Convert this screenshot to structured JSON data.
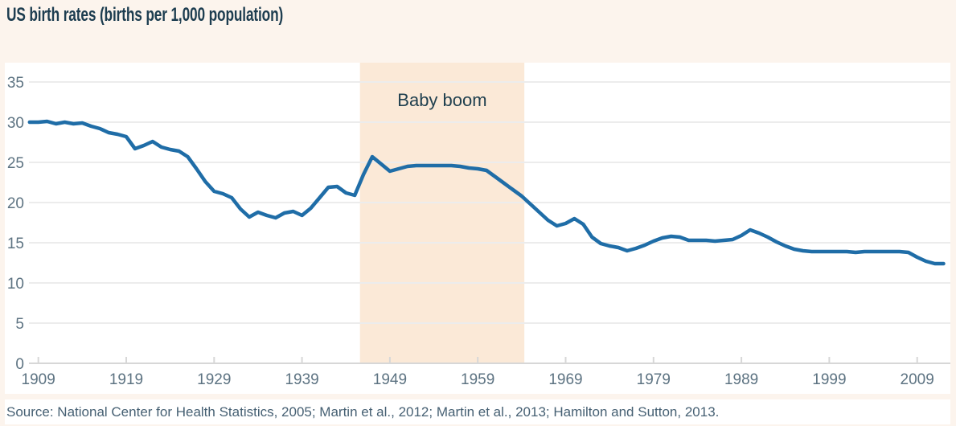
{
  "title": "US birth rates (births per 1,000 population)",
  "source_note": "Source: National Center for Health Statistics, 2005; Martin et al., 2012; Martin et al., 2013; Hamilton and Sutton, 2013.",
  "colors": {
    "page_bg": "#fcf4ed",
    "panel_bg": "#ffffff",
    "line": "#1f6da7",
    "band": "#fbe9d7",
    "title_text": "#1d3d50",
    "annotation_text": "#20404f",
    "axis_text": "#5d7382",
    "source_text": "#466073",
    "gridline": "#ececec",
    "axis_line": "#d7d7d7"
  },
  "chart_data": {
    "type": "line",
    "title": "US birth rates (births per 1,000 population)",
    "xlabel": "",
    "ylabel": "births per 1,000 population",
    "xlim": [
      1908,
      2012
    ],
    "ylim": [
      0,
      37.4
    ],
    "xticks": [
      1909,
      1919,
      1929,
      1939,
      1949,
      1959,
      1969,
      1979,
      1989,
      1999,
      2009
    ],
    "yticks": [
      0,
      5,
      10,
      15,
      20,
      25,
      30,
      35
    ],
    "grid": "horizontal",
    "legend": "none",
    "shaded_region": {
      "label": "Baby boom",
      "x_start": 1945.6,
      "x_end": 1964.3
    },
    "series": [
      {
        "name": "US birth rate",
        "x": [
          1908,
          1909,
          1910,
          1911,
          1912,
          1913,
          1914,
          1915,
          1916,
          1917,
          1918,
          1919,
          1920,
          1921,
          1922,
          1923,
          1924,
          1925,
          1926,
          1927,
          1928,
          1929,
          1930,
          1931,
          1932,
          1933,
          1934,
          1935,
          1936,
          1937,
          1938,
          1939,
          1940,
          1941,
          1942,
          1943,
          1944,
          1945,
          1946,
          1947,
          1948,
          1949,
          1950,
          1951,
          1952,
          1953,
          1954,
          1955,
          1956,
          1957,
          1958,
          1959,
          1960,
          1961,
          1962,
          1963,
          1964,
          1965,
          1966,
          1967,
          1968,
          1969,
          1970,
          1971,
          1972,
          1973,
          1974,
          1975,
          1976,
          1977,
          1978,
          1979,
          1980,
          1981,
          1982,
          1983,
          1984,
          1985,
          1986,
          1987,
          1988,
          1989,
          1990,
          1991,
          1992,
          1993,
          1994,
          1995,
          1996,
          1997,
          1998,
          1999,
          2000,
          2001,
          2002,
          2003,
          2004,
          2005,
          2006,
          2007,
          2008,
          2009,
          2010,
          2011,
          2012
        ],
        "values": [
          30.0,
          30.0,
          30.1,
          29.8,
          30.0,
          29.8,
          29.9,
          29.5,
          29.2,
          28.7,
          28.5,
          28.2,
          26.7,
          27.1,
          27.6,
          26.9,
          26.6,
          26.4,
          25.7,
          24.2,
          22.6,
          21.4,
          21.1,
          20.6,
          19.2,
          18.2,
          18.8,
          18.4,
          18.1,
          18.7,
          18.9,
          18.4,
          19.3,
          20.6,
          21.9,
          22.0,
          21.2,
          20.9,
          23.5,
          25.7,
          24.8,
          23.9,
          24.2,
          24.5,
          24.6,
          24.6,
          24.6,
          24.6,
          24.6,
          24.5,
          24.3,
          24.2,
          24.0,
          23.2,
          22.4,
          21.6,
          20.8,
          19.8,
          18.8,
          17.8,
          17.1,
          17.4,
          18.0,
          17.3,
          15.7,
          14.9,
          14.6,
          14.4,
          14.0,
          14.3,
          14.7,
          15.2,
          15.6,
          15.8,
          15.7,
          15.3,
          15.3,
          15.3,
          15.2,
          15.3,
          15.4,
          15.9,
          16.6,
          16.2,
          15.7,
          15.1,
          14.6,
          14.2,
          14.0,
          13.9,
          13.9,
          13.9,
          13.9,
          13.9,
          13.8,
          13.9,
          13.9,
          13.9,
          13.9,
          13.9,
          13.8,
          13.2,
          12.7,
          12.4,
          12.4
        ]
      }
    ]
  }
}
